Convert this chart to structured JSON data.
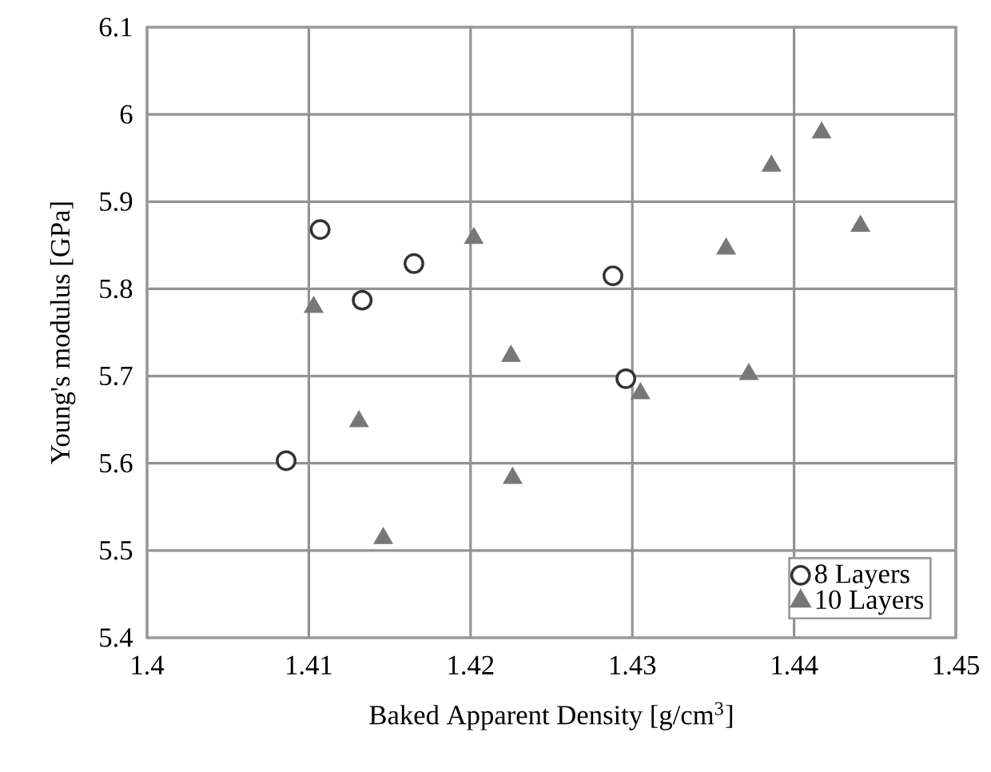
{
  "chart_data": {
    "type": "scatter",
    "xlabel": "Baked Apparent Density [g/cm$^{3}$]",
    "ylabel": "Young's modulus [GPa]",
    "xlim": [
      1.4,
      1.45
    ],
    "xticks": [
      1.4,
      1.41,
      1.42,
      1.43,
      1.44,
      1.45
    ],
    "ylim": [
      5.4,
      6.1
    ],
    "yticks": [
      5.4,
      5.5,
      5.6,
      5.7,
      5.8,
      5.9,
      6,
      6.1
    ],
    "grid": true,
    "legend": "bottom right",
    "series": [
      {
        "name": "8 Layers",
        "color": "#333333",
        "marker": "circle",
        "x": [
          1.4107,
          1.4165,
          1.4133,
          1.4086,
          1.4288,
          1.4296
        ],
        "values": [
          5.868,
          5.829,
          5.787,
          5.603,
          5.815,
          5.697
        ]
      },
      {
        "name": "10 Layers",
        "color": "#777777",
        "marker": "triangle",
        "x": [
          1.4202,
          1.4103,
          1.4225,
          1.4131,
          1.4226,
          1.4146,
          1.4417,
          1.4386,
          1.4441,
          1.4358,
          1.4372,
          1.4305
        ],
        "values": [
          5.858,
          5.779,
          5.723,
          5.648,
          5.583,
          5.514,
          5.979,
          5.941,
          5.872,
          5.846,
          5.702,
          5.68
        ]
      }
    ]
  }
}
